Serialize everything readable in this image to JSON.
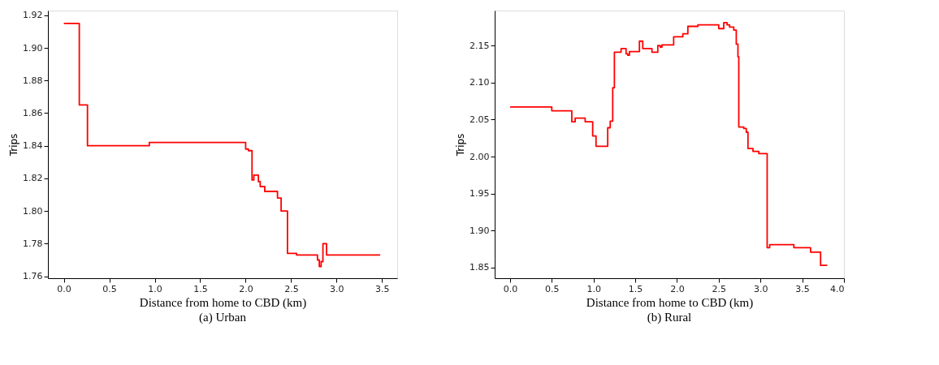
{
  "chart_data": [
    {
      "type": "step",
      "title": "(a) Urban",
      "xlabel": "Distance from home to CBD (km)",
      "ylabel": "Trips",
      "grid": false,
      "legend": false,
      "line_style": "solid",
      "x": [
        0,
        0.17,
        0.26,
        0.94,
        2.0,
        2.03,
        2.07,
        2.09,
        2.14,
        2.16,
        2.21,
        2.35,
        2.39,
        2.46,
        2.56,
        2.79,
        2.81,
        2.83,
        2.85,
        2.89,
        3.48
      ],
      "series": [
        {
          "color": "#ff0000",
          "values": [
            1.915,
            1.865,
            1.84,
            1.842,
            1.838,
            1.837,
            1.819,
            1.822,
            1.818,
            1.815,
            1.812,
            1.808,
            1.8,
            1.774,
            1.773,
            1.77,
            1.766,
            1.769,
            1.78,
            1.773,
            1.773
          ]
        }
      ],
      "xlim": [
        -0.175,
        3.667
      ],
      "xticks": [
        {
          "value": 0,
          "label": "0.0"
        },
        {
          "value": 0.5,
          "label": "0.5"
        },
        {
          "value": 1,
          "label": "1.0"
        },
        1.5,
        {
          "value": 2,
          "label": "2.0"
        },
        2.5,
        {
          "value": 3,
          "label": "3.0"
        },
        3.5
      ],
      "ylim": [
        1.7588,
        1.9229
      ],
      "yticks": [
        1.76,
        1.78,
        {
          "value": 1.8,
          "label": "1.80"
        },
        1.82,
        1.84,
        1.86,
        1.88,
        {
          "value": 1.9,
          "label": "1.90"
        },
        1.92
      ]
    },
    {
      "type": "step",
      "title": "(b) Rural",
      "xlabel": "Distance from home to CBD (km)",
      "ylabel": "Trips",
      "grid": false,
      "legend": false,
      "line_style": "solid",
      "x": [
        0,
        0.5,
        0.74,
        0.78,
        0.9,
        0.99,
        1.03,
        1.17,
        1.2,
        1.23,
        1.25,
        1.33,
        1.39,
        1.41,
        1.43,
        1.55,
        1.59,
        1.7,
        1.77,
        1.8,
        1.82,
        1.96,
        2.07,
        2.13,
        2.25,
        2.5,
        2.56,
        2.6,
        2.63,
        2.68,
        2.71,
        2.73,
        2.74,
        2.8,
        2.83,
        2.85,
        2.91,
        2.98,
        3.08,
        3.11,
        3.4,
        3.6,
        3.72,
        3.8
      ],
      "series": [
        {
          "color": "#ff0000",
          "values": [
            2.067,
            2.062,
            2.047,
            2.052,
            2.047,
            2.028,
            2.014,
            2.039,
            2.048,
            2.093,
            2.141,
            2.146,
            2.139,
            2.137,
            2.142,
            2.156,
            2.146,
            2.141,
            2.15,
            2.148,
            2.151,
            2.162,
            2.166,
            2.176,
            2.178,
            2.173,
            2.181,
            2.178,
            2.175,
            2.171,
            2.152,
            2.135,
            2.04,
            2.038,
            2.033,
            2.011,
            2.007,
            2.004,
            1.877,
            1.881,
            1.877,
            1.871,
            1.853,
            1.853
          ]
        }
      ],
      "xlim": [
        -0.184,
        4.0
      ],
      "xticks": [
        {
          "value": 0,
          "label": "0.0"
        },
        0.5,
        {
          "value": 1,
          "label": "1.0"
        },
        1.5,
        {
          "value": 2,
          "label": "2.0"
        },
        2.5,
        {
          "value": 3,
          "label": "3.0"
        },
        3.5,
        {
          "value": 4,
          "label": "4.0"
        }
      ],
      "ylim": [
        1.8357,
        2.1974
      ],
      "yticks": [
        1.85,
        {
          "value": 1.9,
          "label": "1.90"
        },
        1.95,
        {
          "value": 2,
          "label": "2.00"
        },
        2.05,
        {
          "value": 2.1,
          "label": "2.10"
        },
        2.15
      ]
    }
  ]
}
